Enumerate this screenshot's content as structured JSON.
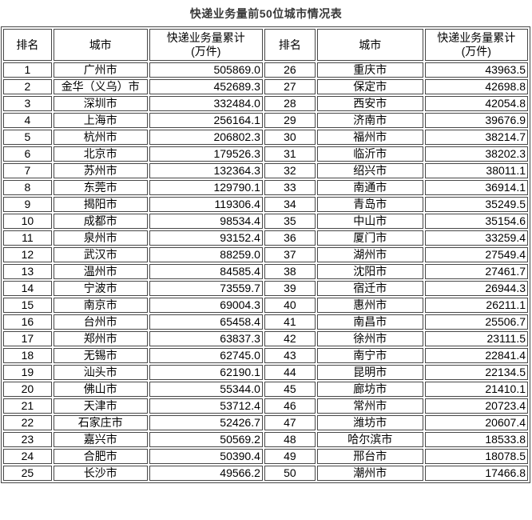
{
  "title": "快递业务量前50位城市情况表",
  "columns": {
    "rank": "排名",
    "city": "城市",
    "volume_line1": "快递业务量累计",
    "volume_line2": "(万件)"
  },
  "colors": {
    "background": "#ffffff",
    "border": "#474747",
    "text": "#000000",
    "title": "#383838"
  },
  "chart_data": {
    "type": "table",
    "title": "快递业务量前50位城市情况表",
    "columns": [
      "排名",
      "城市",
      "快递业务量累计(万件)",
      "排名",
      "城市",
      "快递业务量累计(万件)"
    ],
    "unit": "万件",
    "rows_left": [
      [
        "1",
        "广州市",
        "505869.0"
      ],
      [
        "2",
        "金华（义乌）市",
        "452689.3"
      ],
      [
        "3",
        "深圳市",
        "332484.0"
      ],
      [
        "4",
        "上海市",
        "256164.1"
      ],
      [
        "5",
        "杭州市",
        "206802.3"
      ],
      [
        "6",
        "北京市",
        "179526.3"
      ],
      [
        "7",
        "苏州市",
        "132364.3"
      ],
      [
        "8",
        "东莞市",
        "129790.1"
      ],
      [
        "9",
        "揭阳市",
        "119306.4"
      ],
      [
        "10",
        "成都市",
        "98534.4"
      ],
      [
        "11",
        "泉州市",
        "93152.4"
      ],
      [
        "12",
        "武汉市",
        "88259.0"
      ],
      [
        "13",
        "温州市",
        "84585.4"
      ],
      [
        "14",
        "宁波市",
        "73559.7"
      ],
      [
        "15",
        "南京市",
        "69004.3"
      ],
      [
        "16",
        "台州市",
        "65458.4"
      ],
      [
        "17",
        "郑州市",
        "63837.3"
      ],
      [
        "18",
        "无锡市",
        "62745.0"
      ],
      [
        "19",
        "汕头市",
        "62190.1"
      ],
      [
        "20",
        "佛山市",
        "55344.0"
      ],
      [
        "21",
        "天津市",
        "53712.4"
      ],
      [
        "22",
        "石家庄市",
        "52426.7"
      ],
      [
        "23",
        "嘉兴市",
        "50569.2"
      ],
      [
        "24",
        "合肥市",
        "50390.4"
      ],
      [
        "25",
        "长沙市",
        "49566.2"
      ]
    ],
    "rows_right": [
      [
        "26",
        "重庆市",
        "43963.5"
      ],
      [
        "27",
        "保定市",
        "42698.8"
      ],
      [
        "28",
        "西安市",
        "42054.8"
      ],
      [
        "29",
        "济南市",
        "39676.9"
      ],
      [
        "30",
        "福州市",
        "38214.7"
      ],
      [
        "31",
        "临沂市",
        "38202.3"
      ],
      [
        "32",
        "绍兴市",
        "38011.1"
      ],
      [
        "33",
        "南通市",
        "36914.1"
      ],
      [
        "34",
        "青岛市",
        "35249.5"
      ],
      [
        "35",
        "中山市",
        "35154.6"
      ],
      [
        "36",
        "厦门市",
        "33259.4"
      ],
      [
        "37",
        "湖州市",
        "27549.4"
      ],
      [
        "38",
        "沈阳市",
        "27461.7"
      ],
      [
        "39",
        "宿迁市",
        "26944.3"
      ],
      [
        "40",
        "惠州市",
        "26211.1"
      ],
      [
        "41",
        "南昌市",
        "25506.7"
      ],
      [
        "42",
        "徐州市",
        "23111.5"
      ],
      [
        "43",
        "南宁市",
        "22841.4"
      ],
      [
        "44",
        "昆明市",
        "22134.5"
      ],
      [
        "45",
        "廊坊市",
        "21410.1"
      ],
      [
        "46",
        "常州市",
        "20723.4"
      ],
      [
        "47",
        "潍坊市",
        "20607.4"
      ],
      [
        "48",
        "哈尔滨市",
        "18533.8"
      ],
      [
        "49",
        "邢台市",
        "18078.5"
      ],
      [
        "50",
        "潮州市",
        "17466.8"
      ]
    ]
  }
}
